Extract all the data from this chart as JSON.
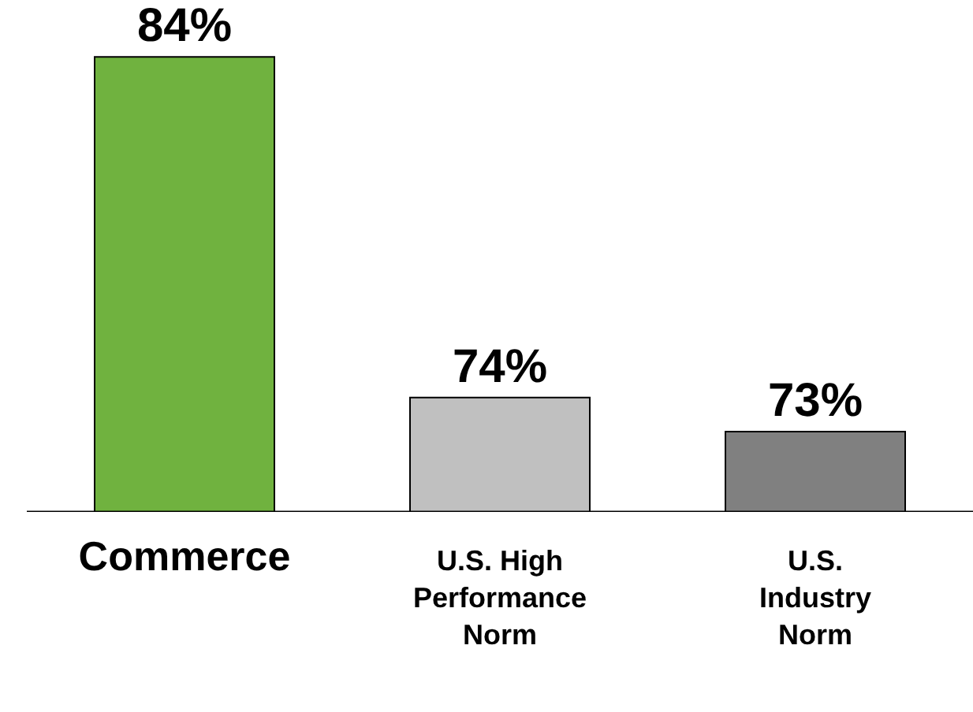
{
  "chart_data": {
    "type": "bar",
    "categories": [
      "Commerce",
      "U.S. High Performance Norm",
      "U.S. Industry Norm"
    ],
    "values": [
      84,
      74,
      73
    ],
    "colors": [
      "#70b23f",
      "#c0c0c0",
      "#808080"
    ],
    "value_labels": [
      "84%",
      "74%",
      "73%"
    ],
    "grid": false,
    "legend": false
  }
}
